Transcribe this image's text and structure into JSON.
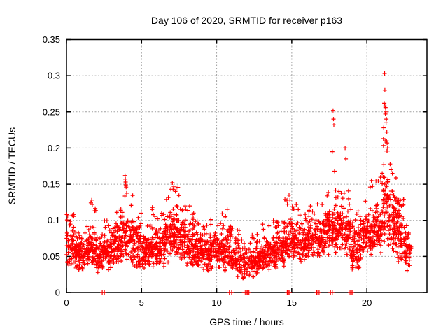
{
  "chart_data": {
    "type": "scatter",
    "title": "Day 106 of 2020, SRMTID for receiver p163",
    "xlabel": "GPS time / hours",
    "ylabel": "SRMTID / TECUs",
    "xlim": [
      0,
      24
    ],
    "ylim": [
      0,
      0.35
    ],
    "xticks": [
      0,
      5,
      10,
      15,
      20
    ],
    "xtick_labels": [
      "0",
      "5",
      "10",
      "15",
      "20"
    ],
    "yticks": [
      0,
      0.05,
      0.1,
      0.15,
      0.2,
      0.25,
      0.3,
      0.35
    ],
    "ytick_labels": [
      "0",
      "0.05",
      "0.1",
      "0.15",
      "0.2",
      "0.25",
      "0.3",
      "0.35"
    ],
    "grid": true,
    "legend": "none",
    "marker": "plus",
    "marker_color": "#ff0000",
    "series_name": "SRMTID",
    "seed": 1106,
    "band_bins": [
      [
        0.0,
        0.5,
        0.035,
        0.105,
        0.11,
        58
      ],
      [
        0.5,
        0.5,
        0.03,
        0.09,
        0.1,
        58
      ],
      [
        1.0,
        0.5,
        0.03,
        0.095,
        0.105,
        58
      ],
      [
        1.5,
        0.5,
        0.03,
        0.1,
        0.125,
        58
      ],
      [
        2.0,
        0.5,
        0.025,
        0.085,
        0.095,
        58
      ],
      [
        2.5,
        0.5,
        0.03,
        0.09,
        0.1,
        58
      ],
      [
        3.0,
        0.5,
        0.035,
        0.11,
        0.125,
        58
      ],
      [
        3.5,
        0.5,
        0.04,
        0.125,
        0.148,
        60
      ],
      [
        4.0,
        0.5,
        0.04,
        0.115,
        0.138,
        58
      ],
      [
        4.5,
        0.5,
        0.03,
        0.1,
        0.11,
        58
      ],
      [
        5.0,
        0.5,
        0.03,
        0.09,
        0.1,
        58
      ],
      [
        5.5,
        0.5,
        0.035,
        0.1,
        0.115,
        58
      ],
      [
        6.0,
        0.5,
        0.03,
        0.1,
        0.11,
        58
      ],
      [
        6.5,
        0.5,
        0.04,
        0.12,
        0.14,
        60
      ],
      [
        7.0,
        0.5,
        0.05,
        0.13,
        0.148,
        62
      ],
      [
        7.5,
        0.5,
        0.04,
        0.11,
        0.12,
        58
      ],
      [
        8.0,
        0.5,
        0.035,
        0.1,
        0.115,
        58
      ],
      [
        8.5,
        0.5,
        0.03,
        0.09,
        0.1,
        58
      ],
      [
        9.0,
        0.5,
        0.03,
        0.085,
        0.095,
        58
      ],
      [
        9.5,
        0.5,
        0.03,
        0.09,
        0.11,
        58
      ],
      [
        10.0,
        0.5,
        0.03,
        0.09,
        0.112,
        58
      ],
      [
        10.5,
        0.5,
        0.025,
        0.095,
        0.113,
        58
      ],
      [
        11.0,
        0.5,
        0.02,
        0.08,
        0.09,
        55
      ],
      [
        11.5,
        0.5,
        0.015,
        0.07,
        0.08,
        48
      ],
      [
        12.0,
        0.5,
        0.015,
        0.07,
        0.08,
        48
      ],
      [
        12.5,
        0.5,
        0.025,
        0.075,
        0.085,
        55
      ],
      [
        13.0,
        0.5,
        0.03,
        0.08,
        0.1,
        58
      ],
      [
        13.5,
        0.5,
        0.03,
        0.085,
        0.103,
        58
      ],
      [
        14.0,
        0.5,
        0.035,
        0.09,
        0.1,
        58
      ],
      [
        14.5,
        0.5,
        0.04,
        0.11,
        0.132,
        58
      ],
      [
        15.0,
        0.5,
        0.04,
        0.11,
        0.123,
        58
      ],
      [
        15.5,
        0.5,
        0.04,
        0.1,
        0.11,
        58
      ],
      [
        16.0,
        0.5,
        0.045,
        0.11,
        0.123,
        58
      ],
      [
        16.5,
        0.5,
        0.05,
        0.115,
        0.13,
        58
      ],
      [
        17.0,
        0.5,
        0.05,
        0.12,
        0.14,
        60
      ],
      [
        17.5,
        0.5,
        0.05,
        0.13,
        0.16,
        60
      ],
      [
        18.0,
        0.5,
        0.05,
        0.125,
        0.14,
        60
      ],
      [
        18.5,
        0.5,
        0.045,
        0.12,
        0.15,
        60
      ],
      [
        19.0,
        0.5,
        0.025,
        0.1,
        0.12,
        58
      ],
      [
        19.5,
        0.5,
        0.045,
        0.115,
        0.13,
        58
      ],
      [
        20.0,
        0.5,
        0.05,
        0.125,
        0.155,
        60
      ],
      [
        20.5,
        0.5,
        0.05,
        0.13,
        0.16,
        60
      ],
      [
        21.0,
        0.5,
        0.06,
        0.19,
        0.21,
        70
      ],
      [
        21.5,
        0.5,
        0.05,
        0.155,
        0.175,
        65
      ],
      [
        22.0,
        0.5,
        0.04,
        0.12,
        0.13,
        65
      ],
      [
        22.5,
        0.45,
        0.03,
        0.1,
        0.115,
        48
      ]
    ],
    "outlier_points": [
      [
        1.68,
        0.128
      ],
      [
        1.72,
        0.122
      ],
      [
        3.9,
        0.162
      ],
      [
        3.92,
        0.157
      ],
      [
        3.94,
        0.153
      ],
      [
        3.95,
        0.149
      ],
      [
        3.97,
        0.146
      ],
      [
        5.72,
        0.118
      ],
      [
        6.95,
        0.143
      ],
      [
        7.05,
        0.152
      ],
      [
        7.15,
        0.147
      ],
      [
        7.25,
        0.14
      ],
      [
        8.2,
        0.12
      ],
      [
        10.7,
        0.115
      ],
      [
        14.82,
        0.135
      ],
      [
        14.88,
        0.128
      ],
      [
        15.3,
        0.122
      ],
      [
        17.7,
        0.195
      ],
      [
        17.75,
        0.252
      ],
      [
        17.78,
        0.24
      ],
      [
        17.8,
        0.232
      ],
      [
        17.85,
        0.168
      ],
      [
        18.55,
        0.2
      ],
      [
        18.6,
        0.185
      ],
      [
        20.3,
        0.155
      ],
      [
        20.38,
        0.147
      ],
      [
        21.18,
        0.303
      ],
      [
        21.2,
        0.28
      ],
      [
        21.16,
        0.262
      ],
      [
        21.2,
        0.258
      ],
      [
        21.24,
        0.256
      ],
      [
        21.26,
        0.25
      ],
      [
        21.23,
        0.247
      ],
      [
        21.3,
        0.24
      ],
      [
        21.28,
        0.235
      ],
      [
        21.12,
        0.228
      ],
      [
        21.33,
        0.222
      ],
      [
        21.1,
        0.213
      ],
      [
        21.35,
        0.207
      ],
      [
        21.38,
        0.2
      ],
      [
        21.3,
        0.196
      ],
      [
        21.55,
        0.178
      ],
      [
        21.62,
        0.17
      ],
      [
        21.7,
        0.165
      ],
      [
        22.12,
        0.128
      ],
      [
        22.3,
        0.12
      ]
    ],
    "zero_points": [
      2.38,
      2.52,
      10.85,
      11.0,
      11.82,
      11.92,
      12.02,
      12.08,
      12.15,
      14.7,
      14.78,
      14.86,
      16.66,
      16.74,
      16.82,
      17.58,
      17.7,
      18.88,
      18.95,
      19.02
    ]
  },
  "style": {
    "background": "#ffffff",
    "border_color": "#000000",
    "grid_color": "#a0a0a0",
    "text_color": "#000000",
    "point_color": "#ff0000"
  }
}
